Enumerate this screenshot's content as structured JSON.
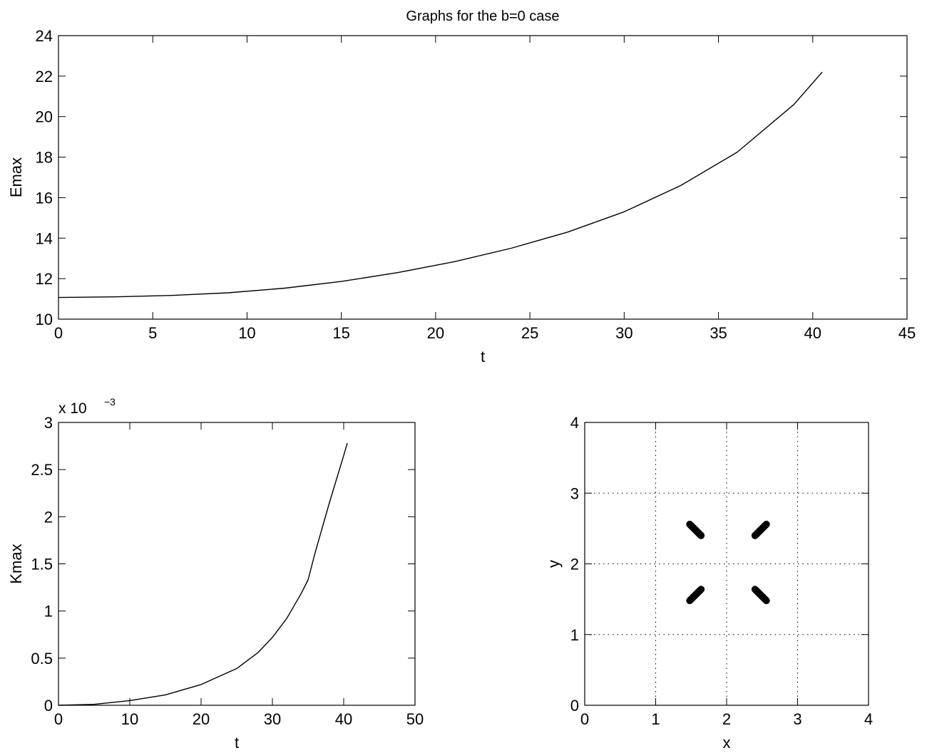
{
  "chart_data": [
    {
      "type": "line",
      "title": "Graphs for the b=0 case",
      "xlabel": "t",
      "ylabel": "Emax",
      "xlim": [
        0,
        45
      ],
      "ylim": [
        10,
        24
      ],
      "xticks": [
        0,
        5,
        10,
        15,
        20,
        25,
        30,
        35,
        40,
        45
      ],
      "yticks": [
        10,
        12,
        14,
        16,
        18,
        20,
        22,
        24
      ],
      "grid": false,
      "series": [
        {
          "x": [
            0,
            3,
            6,
            9,
            12,
            15,
            18,
            21,
            24,
            27,
            30,
            33,
            36,
            39,
            40.5
          ],
          "y": [
            11.07,
            11.1,
            11.17,
            11.3,
            11.53,
            11.86,
            12.3,
            12.84,
            13.5,
            14.3,
            15.3,
            16.6,
            18.25,
            20.6,
            22.2
          ]
        }
      ]
    },
    {
      "type": "line",
      "xlabel": "t",
      "ylabel": "Kmax",
      "exponent_label": "x 10",
      "exponent_power": "−3",
      "xlim": [
        0,
        50
      ],
      "ylim": [
        0,
        3
      ],
      "xticks": [
        0,
        10,
        20,
        30,
        40,
        50
      ],
      "yticks": [
        0,
        0.5,
        1,
        1.5,
        2,
        2.5,
        3
      ],
      "grid": false,
      "series": [
        {
          "x": [
            0,
            5,
            10,
            15,
            20,
            25,
            28,
            30,
            32,
            34,
            35,
            36,
            38,
            40,
            40.5
          ],
          "y": [
            0,
            0.01,
            0.05,
            0.11,
            0.22,
            0.39,
            0.56,
            0.72,
            0.92,
            1.18,
            1.33,
            1.62,
            2.15,
            2.65,
            2.78
          ]
        }
      ]
    },
    {
      "type": "scatter",
      "xlabel": "x",
      "ylabel": "y",
      "xlim": [
        0,
        4
      ],
      "ylim": [
        0,
        4
      ],
      "xticks": [
        0,
        1,
        2,
        3,
        4
      ],
      "yticks": [
        0,
        1,
        2,
        3,
        4
      ],
      "grid": true,
      "segments": [
        {
          "x1": 1.48,
          "y1": 2.56,
          "x2": 1.64,
          "y2": 2.4
        },
        {
          "x1": 2.4,
          "y1": 2.4,
          "x2": 2.56,
          "y2": 2.56
        },
        {
          "x1": 1.48,
          "y1": 1.48,
          "x2": 1.64,
          "y2": 1.64
        },
        {
          "x1": 2.4,
          "y1": 1.64,
          "x2": 2.56,
          "y2": 1.48
        }
      ]
    }
  ]
}
